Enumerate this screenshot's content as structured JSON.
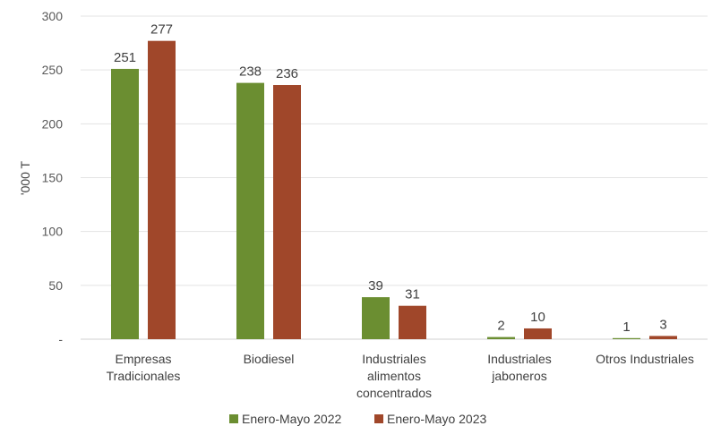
{
  "chart_data": {
    "type": "bar",
    "ylabel": "'000 T",
    "ylim": [
      0,
      300
    ],
    "yticks": [
      "-",
      "50",
      "100",
      "150",
      "200",
      "250",
      "300"
    ],
    "categories": [
      [
        "Empresas",
        "Tradicionales"
      ],
      [
        "Biodiesel"
      ],
      [
        "Industriales",
        "alimentos",
        "concentrados"
      ],
      [
        "Industriales",
        "jaboneros"
      ],
      [
        "Otros Industriales"
      ]
    ],
    "series": [
      {
        "name": "Enero-Mayo 2022",
        "color": "#6b8e31",
        "values": [
          251,
          238,
          39,
          2,
          1
        ]
      },
      {
        "name": "Enero-Mayo 2023",
        "color": "#a0472a",
        "values": [
          277,
          236,
          31,
          10,
          3
        ]
      }
    ],
    "grid": true,
    "legend": "bottom"
  }
}
